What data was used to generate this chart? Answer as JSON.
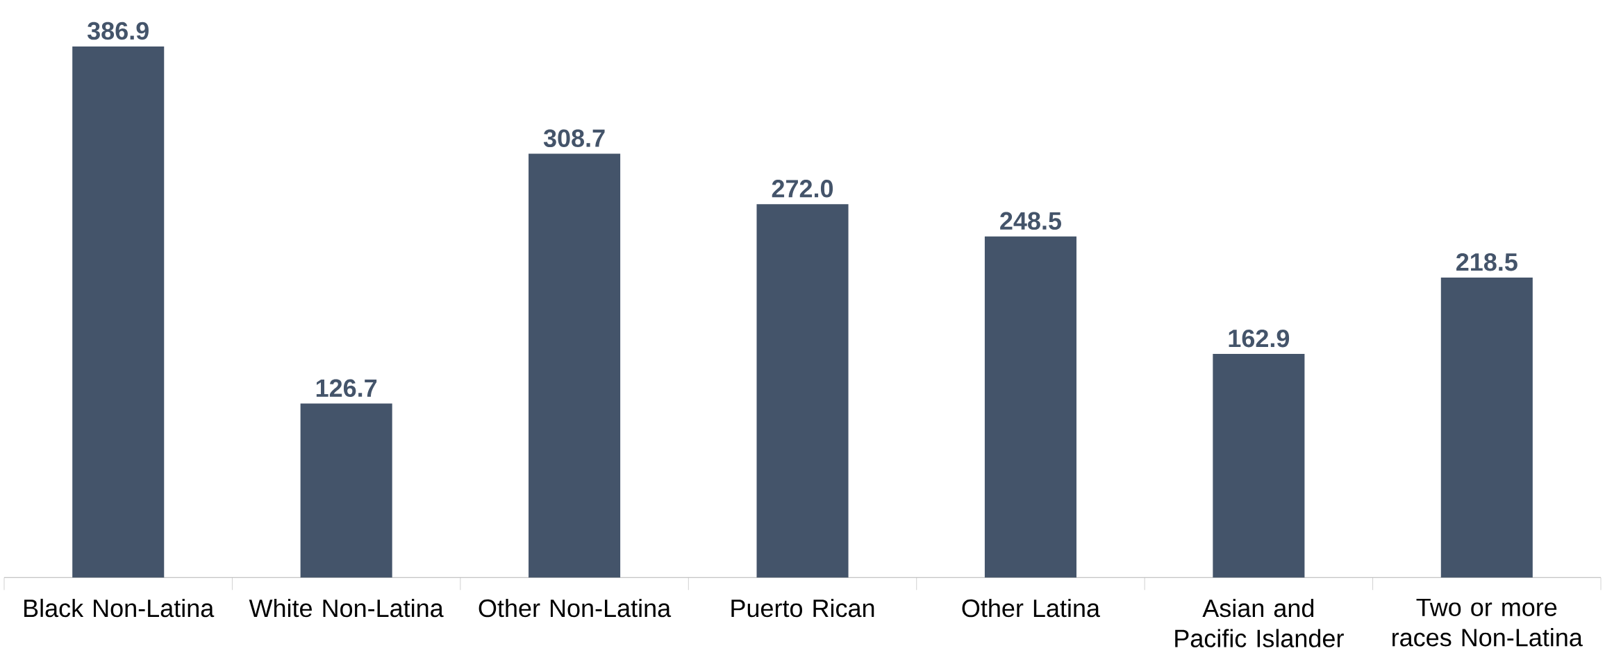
{
  "chart_data": {
    "type": "bar",
    "categories": [
      "Black Non-Latina",
      "White Non-Latina",
      "Other Non-Latina",
      "Puerto Rican",
      "Other Latina",
      "Asian and Pacific Islander",
      "Two or more races Non-Latina"
    ],
    "values": [
      386.9,
      126.7,
      308.7,
      272.0,
      248.5,
      162.9,
      218.5
    ],
    "value_labels": [
      "386.9",
      "126.7",
      "308.7",
      "272.0",
      "248.5",
      "162.9",
      "218.5"
    ],
    "color": "#44546a"
  }
}
